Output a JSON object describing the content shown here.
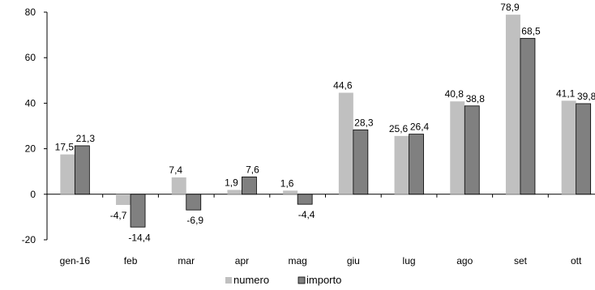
{
  "chart_data": {
    "type": "bar",
    "title": "",
    "xlabel": "",
    "ylabel": "",
    "categories": [
      "gen-16",
      "feb",
      "mar",
      "apr",
      "mag",
      "giu",
      "lug",
      "ago",
      "set",
      "ott"
    ],
    "series": [
      {
        "name": "numero",
        "color": "#c0c0c0",
        "values": [
          17.5,
          -4.7,
          7.4,
          1.9,
          1.6,
          44.6,
          25.6,
          40.8,
          78.9,
          41.1
        ],
        "labels": [
          "17,5",
          "-4,7",
          "7,4",
          "1,9",
          "1,6",
          "44,6",
          "25,6",
          "40,8",
          "78,9",
          "41,1"
        ]
      },
      {
        "name": "importo",
        "color": "#808080",
        "values": [
          21.3,
          -14.4,
          -6.9,
          7.6,
          -4.4,
          28.3,
          26.4,
          38.8,
          68.5,
          39.8
        ],
        "labels": [
          "21,3",
          "-14,4",
          "-6,9",
          "7,6",
          "-4,4",
          "28,3",
          "26,4",
          "38,8",
          "68,5",
          "39,8"
        ]
      }
    ],
    "ylim": [
      -20,
      80
    ],
    "yticks": [
      -20,
      0,
      20,
      40,
      60,
      80
    ],
    "grid": false,
    "legend": "bottom"
  }
}
